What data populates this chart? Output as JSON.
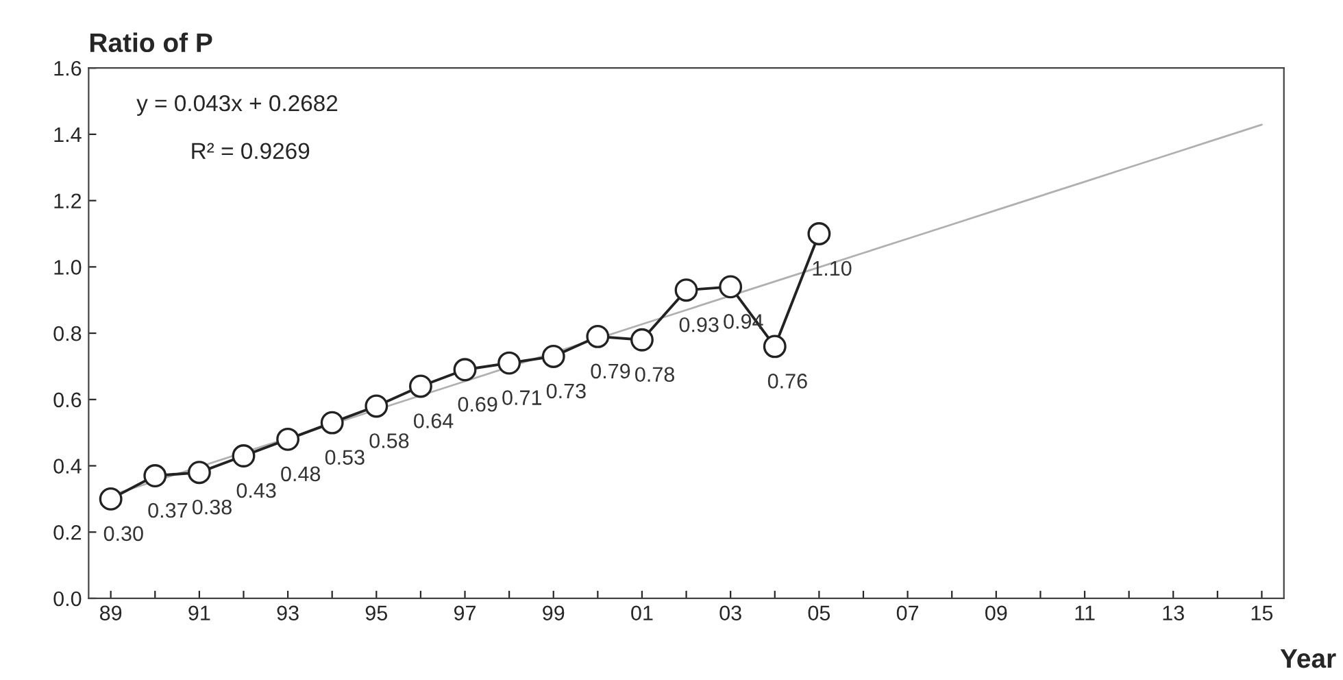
{
  "chart_data": {
    "type": "line",
    "ylabel": "Ratio of P",
    "xlabel": "Year",
    "categories": [
      "89",
      null,
      "91",
      null,
      "93",
      null,
      "95",
      null,
      "97",
      null,
      "99",
      null,
      "01",
      null,
      "03",
      null,
      "05",
      null,
      "07",
      null,
      "09",
      null,
      "11",
      null,
      "13",
      null,
      "15"
    ],
    "series": [
      {
        "color": "#b0b0b0",
        "marker": "none",
        "values": [
          0.311,
          0.354,
          0.397,
          0.44,
          0.483,
          0.526,
          0.569,
          0.612,
          0.655,
          0.698,
          0.741,
          0.784,
          0.827,
          0.87,
          0.913,
          0.956,
          0.999,
          1.042,
          1.085,
          1.128,
          1.171,
          1.214,
          1.257,
          1.3,
          1.343,
          1.386,
          1.429
        ]
      },
      {
        "color": "#222222",
        "marker": "circle",
        "values": [
          0.3,
          0.37,
          0.38,
          0.43,
          0.48,
          0.53,
          0.58,
          0.64,
          0.69,
          0.71,
          0.73,
          0.79,
          0.78,
          0.93,
          0.94,
          0.76,
          1.1,
          null,
          null,
          null,
          null,
          null,
          null,
          null,
          null,
          null,
          null
        ],
        "value_labels": [
          "0.30",
          "0.37",
          "0.38",
          "0.43",
          "0.48",
          "0.53",
          "0.58",
          "0.64",
          "0.69",
          "0.71",
          "0.73",
          "0.79",
          "0.78",
          "0.93",
          "0.94",
          "0.76",
          "1.10",
          null,
          null,
          null,
          null,
          null,
          null,
          null,
          null,
          null,
          null
        ]
      }
    ],
    "ylim": [
      0,
      1.6
    ],
    "yticks": [
      {
        "value": 0,
        "label": "0.0"
      },
      0.2,
      0.4,
      0.6,
      0.8,
      {
        "value": 1.0,
        "label": "1.0"
      },
      1.2,
      1.4,
      1.6
    ],
    "annotations": [
      "y = 0.043x + 0.2682",
      "R² = 0.9269"
    ],
    "grid": false,
    "legend": false
  }
}
